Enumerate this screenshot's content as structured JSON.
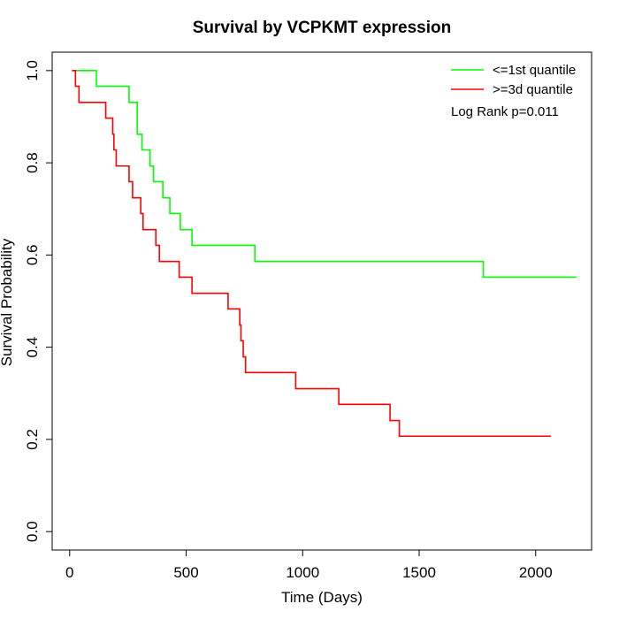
{
  "chart_data": {
    "type": "line",
    "title": "Survival by VCPKMT expression",
    "xlabel": "Time (Days)",
    "ylabel": "Survival Probability",
    "xlim": [
      -75,
      2240
    ],
    "ylim": [
      -0.04,
      1.04
    ],
    "x_ticks": [
      0,
      500,
      1000,
      1500,
      2000
    ],
    "x_tick_labels": [
      "0",
      "500",
      "1000",
      "1500",
      "2000"
    ],
    "y_ticks": [
      0.0,
      0.2,
      0.4,
      0.6,
      0.8,
      1.0
    ],
    "y_tick_labels": [
      "0.0",
      "0.2",
      "0.4",
      "0.6",
      "0.8",
      "1.0"
    ],
    "grid": false,
    "legend_position": "top-right",
    "annotation": "Log Rank p=0.011",
    "series": [
      {
        "name": "<=1st quantile",
        "color": "#00ff00",
        "step_x": [
          10,
          115,
          255,
          290,
          310,
          345,
          360,
          400,
          430,
          475,
          525,
          795,
          1775,
          2175
        ],
        "step_y": [
          1.0,
          0.966,
          0.931,
          0.862,
          0.828,
          0.793,
          0.759,
          0.724,
          0.69,
          0.655,
          0.621,
          0.586,
          0.552,
          0.552
        ]
      },
      {
        "name": ">=3d quantile",
        "color": "#ff0000",
        "step_x": [
          10,
          25,
          40,
          155,
          185,
          190,
          200,
          255,
          270,
          305,
          315,
          370,
          385,
          470,
          525,
          680,
          730,
          735,
          745,
          755,
          970,
          1155,
          1375,
          1415,
          2065
        ],
        "step_y": [
          1.0,
          0.966,
          0.931,
          0.897,
          0.862,
          0.828,
          0.793,
          0.759,
          0.724,
          0.69,
          0.655,
          0.621,
          0.586,
          0.552,
          0.517,
          0.483,
          0.448,
          0.414,
          0.379,
          0.345,
          0.31,
          0.276,
          0.241,
          0.207,
          0.207
        ]
      }
    ]
  }
}
